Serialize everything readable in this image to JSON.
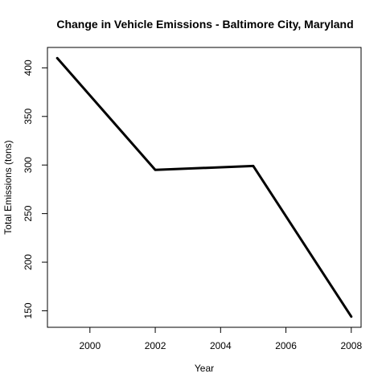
{
  "chart_data": {
    "type": "line",
    "title": "Change in Vehicle Emissions - Baltimore City, Maryland",
    "xlabel": "Year",
    "ylabel": "Total Emissions (tons)",
    "x": [
      1999,
      2002,
      2005,
      2008
    ],
    "series": [
      {
        "values": [
          410,
          295,
          299,
          144
        ]
      }
    ],
    "xticks": [
      2000,
      2002,
      2004,
      2006,
      2008
    ],
    "yticks": [
      150,
      200,
      250,
      300,
      350,
      400
    ],
    "xlim": [
      1998.7,
      2008.3
    ],
    "ylim": [
      133,
      421
    ],
    "grid": false,
    "line_color": "#000000"
  }
}
